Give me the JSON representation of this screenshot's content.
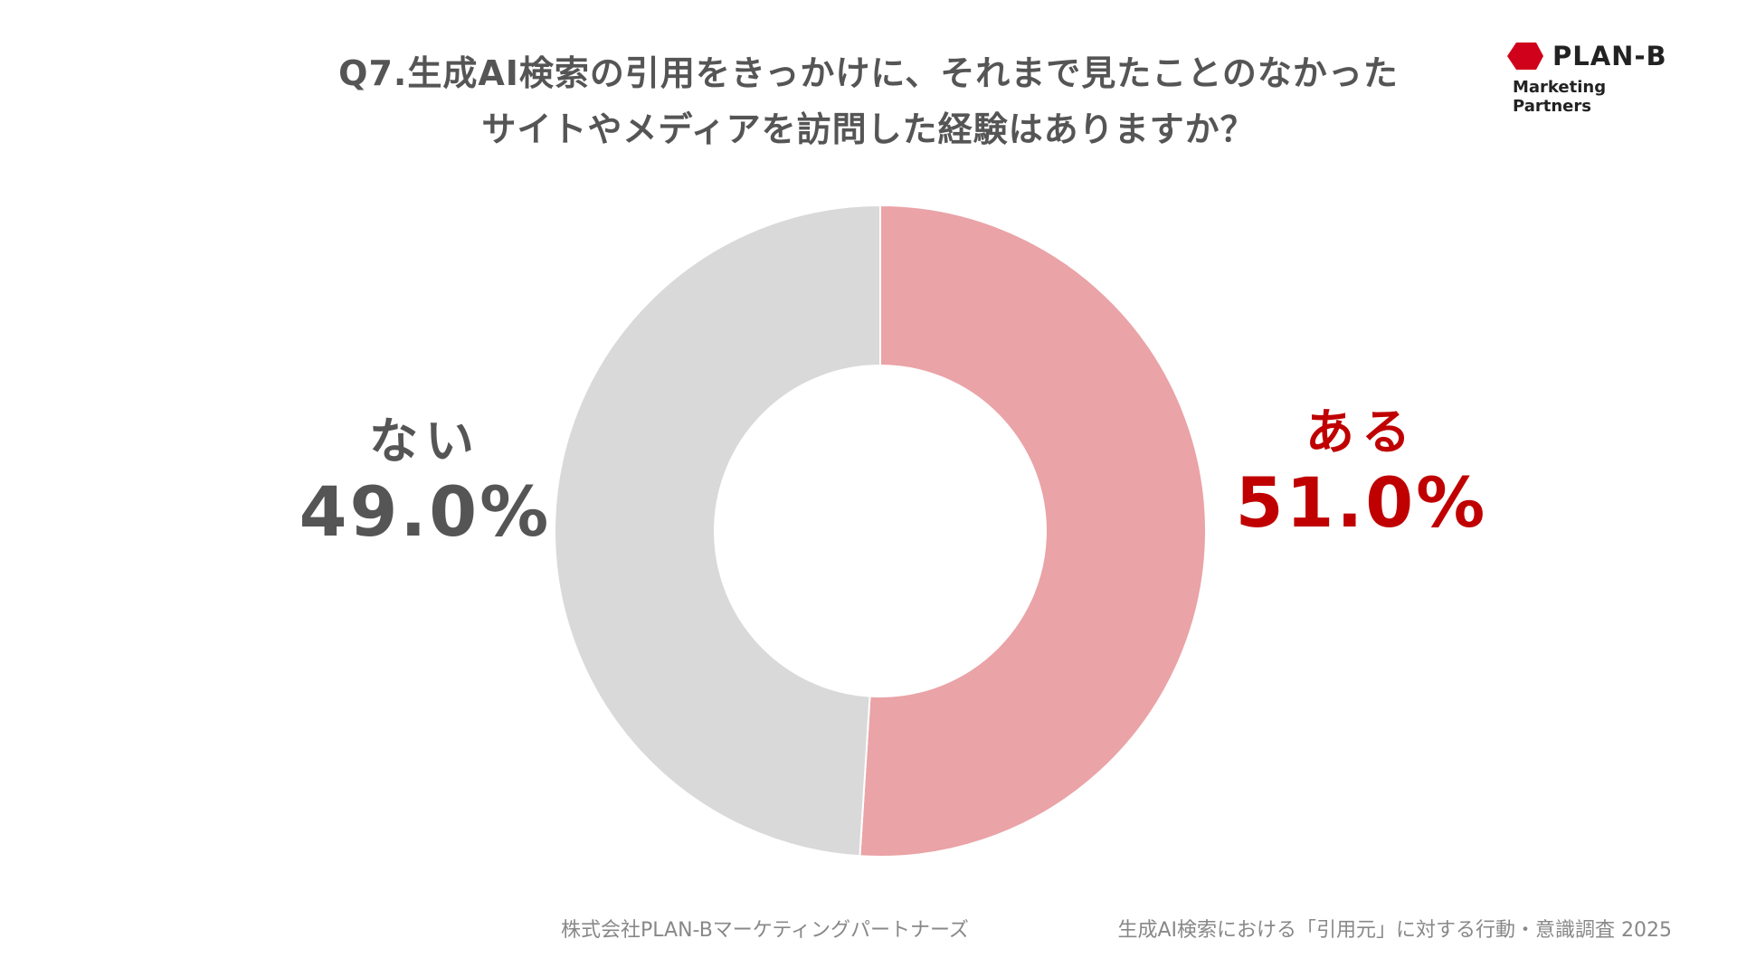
{
  "title": {
    "line1": "Q7.生成AI検索の引用をきっかけに、それまで見たことのなかった",
    "line2": "サイトやメディアを訪問した経験はありますか？"
  },
  "logo": {
    "name": "PLAN-B",
    "subtitle": "Marketing Partners",
    "mark_color": "#d0021b"
  },
  "chart_data": {
    "type": "pie",
    "variant": "donut",
    "title": "Q7.生成AI検索の引用をきっかけに、それまで見たことのなかったサイトやメディアを訪問した経験はありますか？",
    "categories": [
      "ある",
      "ない"
    ],
    "values": [
      51.0,
      49.0
    ],
    "value_labels": [
      "51.0%",
      "49.0%"
    ],
    "colors": [
      "#eaa3a7",
      "#d9d9d9"
    ],
    "label_colors": [
      "#c00000",
      "#555555"
    ],
    "start": "12 o'clock, clockwise",
    "legend": "none"
  },
  "footer": {
    "left": "株式会社PLAN-Bマーケティングパートナーズ",
    "right": "生成AI検索における「引用元」に対する行動・意識調査 2025"
  }
}
